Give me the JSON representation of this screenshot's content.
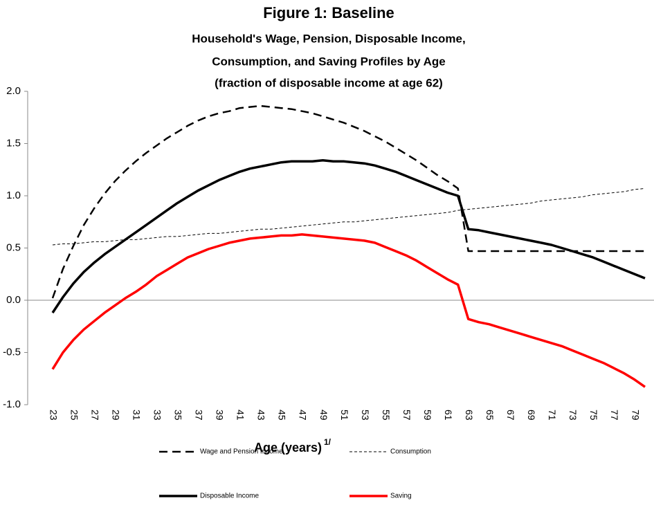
{
  "chart_data": {
    "type": "line",
    "title": "Figure 1: Baseline",
    "subtitle": [
      "Household's Wage, Pension, Disposable Income,",
      "Consumption, and Saving Profiles by Age",
      "(fraction of disposable income at age 62)"
    ],
    "xlabel": "Age (years)",
    "xlabel_note": "1/",
    "categories": [
      "23",
      null,
      "25",
      null,
      "27",
      null,
      "29",
      null,
      "31",
      null,
      "33",
      null,
      "35",
      null,
      "37",
      null,
      "39",
      null,
      "41",
      null,
      "43",
      null,
      "45",
      null,
      "47",
      null,
      "49",
      null,
      "51",
      null,
      "53",
      null,
      "55",
      null,
      "57",
      null,
      "59",
      null,
      "61",
      null,
      "63",
      null,
      "65",
      null,
      "67",
      null,
      "69",
      null,
      "71",
      null,
      "73",
      null,
      "75",
      null,
      "77",
      null,
      "79",
      null
    ],
    "ylim": [
      -1.0,
      2.0
    ],
    "yticks": [
      {
        "value": -1.0,
        "label": "-1.0"
      },
      -0.5,
      {
        "value": 0,
        "label": "0.0"
      },
      0.5,
      {
        "value": 1.0,
        "label": "1.0"
      },
      1.5,
      {
        "value": 2.0,
        "label": "2.0"
      }
    ],
    "grid": false,
    "legend": "bottom",
    "series": [
      {
        "name": "Wage and Pension Income",
        "color": "#000000",
        "line_style": "dashed",
        "values": [
          0.02,
          0.3,
          0.52,
          0.72,
          0.88,
          1.02,
          1.14,
          1.24,
          1.33,
          1.41,
          1.48,
          1.55,
          1.61,
          1.67,
          1.72,
          1.76,
          1.79,
          1.81,
          1.84,
          1.85,
          1.86,
          1.85,
          1.84,
          1.83,
          1.81,
          1.79,
          1.76,
          1.73,
          1.7,
          1.66,
          1.62,
          1.57,
          1.52,
          1.46,
          1.4,
          1.34,
          1.27,
          1.2,
          1.14,
          1.07,
          0.47,
          0.47,
          0.47,
          0.47,
          0.47,
          0.47,
          0.47,
          0.47,
          0.47,
          0.47,
          0.47,
          0.47,
          0.47,
          0.47,
          0.47,
          0.47,
          0.47,
          0.47
        ]
      },
      {
        "name": "Consumption",
        "color": "#000000",
        "line_style": "short-dashed",
        "values": [
          0.53,
          0.54,
          0.54,
          0.55,
          0.56,
          0.56,
          0.57,
          0.58,
          0.58,
          0.59,
          0.6,
          0.61,
          0.61,
          0.62,
          0.63,
          0.64,
          0.64,
          0.65,
          0.66,
          0.67,
          0.68,
          0.68,
          0.69,
          0.7,
          0.71,
          0.72,
          0.73,
          0.74,
          0.75,
          0.75,
          0.76,
          0.77,
          0.78,
          0.79,
          0.8,
          0.81,
          0.82,
          0.83,
          0.84,
          0.86,
          0.87,
          0.88,
          0.89,
          0.9,
          0.91,
          0.92,
          0.93,
          0.95,
          0.96,
          0.97,
          0.98,
          0.99,
          1.01,
          1.02,
          1.03,
          1.04,
          1.06,
          1.07
        ]
      },
      {
        "name": "Disposable Income",
        "color": "#000000",
        "line_style": "solid",
        "values": [
          -0.12,
          0.03,
          0.16,
          0.27,
          0.36,
          0.44,
          0.51,
          0.58,
          0.65,
          0.72,
          0.79,
          0.86,
          0.93,
          0.99,
          1.05,
          1.1,
          1.15,
          1.19,
          1.23,
          1.26,
          1.28,
          1.3,
          1.32,
          1.33,
          1.33,
          1.33,
          1.34,
          1.33,
          1.33,
          1.32,
          1.31,
          1.29,
          1.26,
          1.23,
          1.19,
          1.15,
          1.11,
          1.07,
          1.03,
          1.0,
          0.68,
          0.67,
          0.65,
          0.63,
          0.61,
          0.59,
          0.57,
          0.55,
          0.53,
          0.5,
          0.47,
          0.44,
          0.41,
          0.37,
          0.33,
          0.29,
          0.25,
          0.21
        ]
      },
      {
        "name": "Saving",
        "color": "#ff0000",
        "line_style": "solid",
        "values": [
          -0.66,
          -0.5,
          -0.38,
          -0.28,
          -0.2,
          -0.12,
          -0.05,
          0.02,
          0.08,
          0.15,
          0.23,
          0.29,
          0.35,
          0.41,
          0.45,
          0.49,
          0.52,
          0.55,
          0.57,
          0.59,
          0.6,
          0.61,
          0.62,
          0.62,
          0.63,
          0.62,
          0.61,
          0.6,
          0.59,
          0.58,
          0.57,
          0.55,
          0.51,
          0.47,
          0.43,
          0.38,
          0.32,
          0.26,
          0.2,
          0.15,
          -0.18,
          -0.21,
          -0.23,
          -0.26,
          -0.29,
          -0.32,
          -0.35,
          -0.38,
          -0.41,
          -0.44,
          -0.48,
          -0.52,
          -0.56,
          -0.6,
          -0.65,
          -0.7,
          -0.76,
          -0.83
        ]
      }
    ]
  }
}
